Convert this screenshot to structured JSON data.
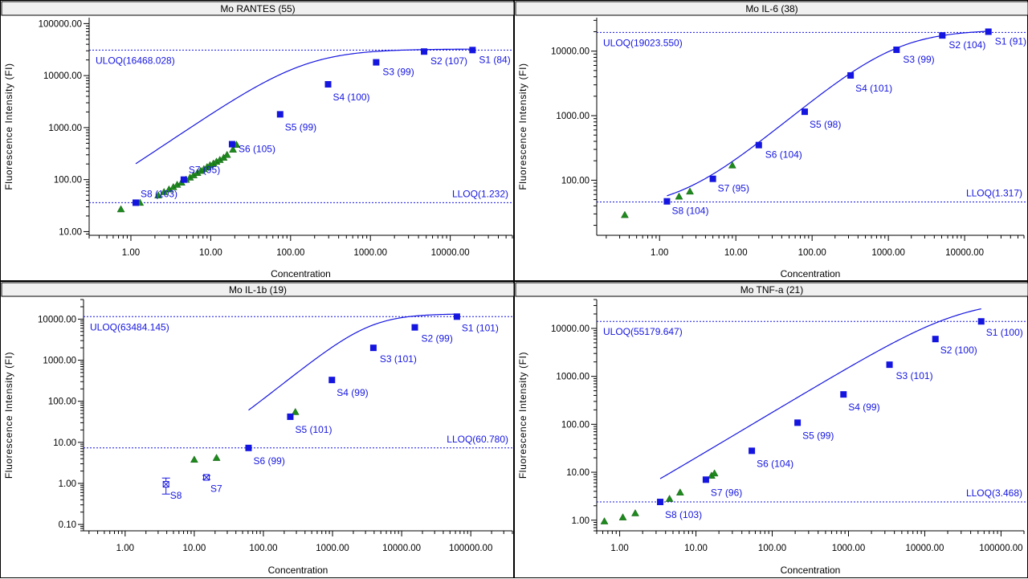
{
  "chart_data": [
    {
      "type": "scatter",
      "title": "Mo RANTES (55)",
      "xlabel": "Concentration",
      "ylabel": "Fluorescence Intensity (FI)",
      "x_scale": "log",
      "y_scale": "log",
      "xlim": [
        0.3,
        60000
      ],
      "ylim": [
        8.5,
        130000
      ],
      "x_ticks": [
        1,
        10,
        100,
        1000,
        10000
      ],
      "x_tick_labels": [
        "1.00",
        "10.00",
        "100.00",
        "1000.00",
        "10000.00"
      ],
      "y_ticks": [
        10,
        100,
        1000,
        10000,
        100000
      ],
      "y_tick_labels": [
        "10.00",
        "100.00",
        "1000.00",
        "10000.00",
        "100000.00"
      ],
      "uloq": {
        "label": "ULOQ(16468.028)",
        "y": 31000
      },
      "lloq": {
        "label": "LLOQ(1.232)",
        "y": 36
      },
      "series": [
        {
          "kind": "standards",
          "color": "#1515e0",
          "points": [
            {
              "label": "S1 (84)",
              "x": 19000,
              "y": 31000
            },
            {
              "label": "S2 (107)",
              "x": 4700,
              "y": 29000
            },
            {
              "label": "S3 (99)",
              "x": 1180,
              "y": 18000
            },
            {
              "label": "S4 (100)",
              "x": 295,
              "y": 6800
            },
            {
              "label": "S5 (99)",
              "x": 74,
              "y": 1800
            },
            {
              "label": "S6 (105)",
              "x": 18.5,
              "y": 480
            },
            {
              "label": "S7 (95)",
              "x": 4.6,
              "y": 100
            },
            {
              "label": "S8 (103)",
              "x": 1.15,
              "y": 36
            }
          ]
        },
        {
          "kind": "samples",
          "color": "#1e8a1e",
          "points": [
            {
              "x": 0.75,
              "y": 27
            },
            {
              "x": 1.3,
              "y": 36
            },
            {
              "x": 2.2,
              "y": 50
            },
            {
              "x": 2.6,
              "y": 58
            },
            {
              "x": 3.0,
              "y": 65
            },
            {
              "x": 3.4,
              "y": 72
            },
            {
              "x": 3.8,
              "y": 80
            },
            {
              "x": 4.3,
              "y": 88
            },
            {
              "x": 4.9,
              "y": 100
            },
            {
              "x": 5.5,
              "y": 110
            },
            {
              "x": 6.1,
              "y": 122
            },
            {
              "x": 6.8,
              "y": 135
            },
            {
              "x": 7.5,
              "y": 148
            },
            {
              "x": 8.2,
              "y": 160
            },
            {
              "x": 9.0,
              "y": 175
            },
            {
              "x": 9.8,
              "y": 190
            },
            {
              "x": 10.8,
              "y": 205
            },
            {
              "x": 11.8,
              "y": 222
            },
            {
              "x": 13,
              "y": 240
            },
            {
              "x": 14.5,
              "y": 265
            },
            {
              "x": 16,
              "y": 300
            },
            {
              "x": 19,
              "y": 380
            },
            {
              "x": 21,
              "y": 470
            }
          ]
        }
      ],
      "curve": {
        "min": 8,
        "max": 32500,
        "c": 150,
        "b": 1.05,
        "color": "#1515e0"
      }
    },
    {
      "type": "scatter",
      "title": "Mo IL-6 (38)",
      "xlabel": "Concentration",
      "ylabel": "Fluorescence Intensity (FI)",
      "x_scale": "log",
      "y_scale": "log",
      "xlim": [
        0.15,
        60000
      ],
      "ylim": [
        14,
        33000
      ],
      "x_ticks": [
        1,
        10,
        100,
        1000,
        10000
      ],
      "x_tick_labels": [
        "1.00",
        "10.00",
        "100.00",
        "1000.00",
        "10000.00"
      ],
      "y_ticks": [
        100,
        1000,
        10000
      ],
      "y_tick_labels": [
        "100.00",
        "1000.00",
        "10000.00"
      ],
      "uloq": {
        "label": "ULOQ(19023.550)",
        "y": 19500
      },
      "lloq": {
        "label": "LLOQ(1.317)",
        "y": 46
      },
      "series": [
        {
          "kind": "standards",
          "color": "#1515e0",
          "points": [
            {
              "label": "S1 (91)",
              "x": 20500,
              "y": 20000
            },
            {
              "label": "S2 (104)",
              "x": 5100,
              "y": 17500
            },
            {
              "label": "S3 (99)",
              "x": 1280,
              "y": 10500
            },
            {
              "label": "S4 (101)",
              "x": 320,
              "y": 4200
            },
            {
              "label": "S5 (98)",
              "x": 80,
              "y": 1150
            },
            {
              "label": "S6 (104)",
              "x": 20,
              "y": 350
            },
            {
              "label": "S7 (95)",
              "x": 5,
              "y": 105
            },
            {
              "label": "S8 (104)",
              "x": 1.25,
              "y": 47
            }
          ]
        },
        {
          "kind": "samples",
          "color": "#1e8a1e",
          "points": [
            {
              "x": 0.35,
              "y": 29
            },
            {
              "x": 1.8,
              "y": 56
            },
            {
              "x": 2.5,
              "y": 67
            },
            {
              "x": 9,
              "y": 170
            }
          ]
        }
      ],
      "curve": {
        "min": 35,
        "max": 21500,
        "c": 1200,
        "b": 1.0,
        "color": "#1515e0"
      }
    },
    {
      "type": "scatter",
      "title": "Mo IL-1b (19)",
      "xlabel": "Concentration",
      "ylabel": "Fluorescence Intensity (FI)",
      "x_scale": "log",
      "y_scale": "log",
      "xlim": [
        0.25,
        400000
      ],
      "ylim": [
        0.07,
        30000
      ],
      "x_ticks": [
        1,
        10,
        100,
        1000,
        10000,
        100000
      ],
      "x_tick_labels": [
        "1.00",
        "10.00",
        "100.00",
        "1000.00",
        "10000.00",
        "100000.00"
      ],
      "y_ticks": [
        0.1,
        1,
        10,
        100,
        1000,
        10000
      ],
      "y_tick_labels": [
        "0.10",
        "1.00",
        "10.00",
        "100.00",
        "1000.00",
        "10000.00"
      ],
      "uloq": {
        "label": "ULOQ(63484.145)",
        "y": 11500
      },
      "lloq": {
        "label": "LLOQ(60.780)",
        "y": 7.3
      },
      "series": [
        {
          "kind": "standards",
          "color": "#1515e0",
          "points": [
            {
              "label": "S1 (101)",
              "x": 63000,
              "y": 11500
            },
            {
              "label": "S2 (99)",
              "x": 15500,
              "y": 6300
            },
            {
              "label": "S3 (101)",
              "x": 3900,
              "y": 2000
            },
            {
              "label": "S4 (99)",
              "x": 980,
              "y": 330
            },
            {
              "label": "S5 (101)",
              "x": 245,
              "y": 42
            },
            {
              "label": "S6 (99)",
              "x": 61,
              "y": 7.3
            }
          ]
        },
        {
          "kind": "excluded",
          "color": "#1515e0",
          "points": [
            {
              "label": "S8",
              "x": 3.9,
              "y": 0.95,
              "err_low": 0.55,
              "err_high": 1.35
            },
            {
              "label": "S7",
              "x": 15,
              "y": 1.4,
              "err_low": 1.25,
              "err_high": 1.55
            }
          ]
        },
        {
          "kind": "samples",
          "color": "#1e8a1e",
          "points": [
            {
              "x": 10,
              "y": 3.8
            },
            {
              "x": 21,
              "y": 4.2
            },
            {
              "x": 290,
              "y": 55
            }
          ]
        }
      ],
      "curve": {
        "min": 4,
        "max": 13500,
        "c": 3500,
        "b": 1.35,
        "color": "#1515e0"
      }
    },
    {
      "type": "scatter",
      "title": "Mo TNF-a (21)",
      "xlabel": "Concentration",
      "ylabel": "Fluorescence Intensity (FI)",
      "x_scale": "log",
      "y_scale": "log",
      "xlim": [
        0.5,
        200000
      ],
      "ylim": [
        0.6,
        40000
      ],
      "x_ticks": [
        1,
        10,
        100,
        1000,
        10000,
        100000
      ],
      "x_tick_labels": [
        "1.00",
        "10.00",
        "100.00",
        "1000.00",
        "10000.00",
        "100000.00"
      ],
      "y_ticks": [
        1,
        10,
        100,
        1000,
        10000
      ],
      "y_tick_labels": [
        "1.00",
        "10.00",
        "100.00",
        "1000.00",
        "10000.00"
      ],
      "uloq": {
        "label": "ULOQ(55179.647)",
        "y": 14000
      },
      "lloq": {
        "label": "LLOQ(3.468)",
        "y": 2.4
      },
      "series": [
        {
          "kind": "standards",
          "color": "#1515e0",
          "points": [
            {
              "label": "S1 (100)",
              "x": 55000,
              "y": 14000
            },
            {
              "label": "S2 (100)",
              "x": 13800,
              "y": 6000
            },
            {
              "label": "S3 (101)",
              "x": 3450,
              "y": 1750
            },
            {
              "label": "S4 (99)",
              "x": 860,
              "y": 420
            },
            {
              "label": "S5 (99)",
              "x": 215,
              "y": 108
            },
            {
              "label": "S6 (104)",
              "x": 54,
              "y": 28
            },
            {
              "label": "S7 (96)",
              "x": 13.5,
              "y": 7
            },
            {
              "label": "S8 (103)",
              "x": 3.4,
              "y": 2.4
            }
          ]
        },
        {
          "kind": "samples",
          "color": "#1e8a1e",
          "points": [
            {
              "x": 0.63,
              "y": 0.95
            },
            {
              "x": 1.1,
              "y": 1.15
            },
            {
              "x": 1.6,
              "y": 1.4
            },
            {
              "x": 4.5,
              "y": 2.8
            },
            {
              "x": 6.2,
              "y": 3.8
            },
            {
              "x": 16,
              "y": 8.5
            },
            {
              "x": 17.5,
              "y": 9.5
            }
          ]
        }
      ],
      "curve": {
        "min": 0.2,
        "max": 40000,
        "c": 30000,
        "b": 0.95,
        "color": "#1515e0"
      }
    }
  ]
}
